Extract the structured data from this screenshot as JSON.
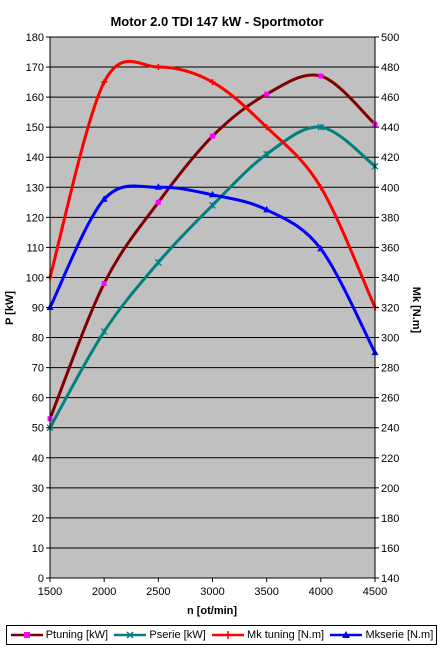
{
  "chart_data": {
    "type": "line",
    "title": "Motor 2.0 TDI 147 kW - Sportmotor",
    "xlabel": "n [ot/min]",
    "ylabel": "P [kW]",
    "y2label": "Mk [N.m]",
    "xlim": [
      1500,
      4500
    ],
    "ylim": [
      0,
      180
    ],
    "y2lim": [
      140,
      500
    ],
    "xticks": [
      1500,
      2000,
      2500,
      3000,
      3500,
      4000,
      4500
    ],
    "yticks": [
      0,
      10,
      20,
      30,
      40,
      50,
      60,
      70,
      80,
      90,
      100,
      110,
      120,
      130,
      140,
      150,
      160,
      170,
      180
    ],
    "y2ticks": [
      140,
      160,
      180,
      200,
      220,
      240,
      260,
      280,
      300,
      320,
      340,
      360,
      380,
      400,
      420,
      440,
      460,
      480,
      500
    ],
    "grid": true,
    "legend_position": "bottom",
    "colors": {
      "plot_bg": "#c0c0c0"
    },
    "series": [
      {
        "name": "Ptuning [kW]",
        "axis": "left",
        "color": "#800000",
        "marker": "square",
        "marker_color": "#ff00ff",
        "x": [
          1500,
          2000,
          2500,
          3000,
          3500,
          4000,
          4500
        ],
        "values": [
          53,
          98,
          125,
          147,
          161,
          167,
          151
        ]
      },
      {
        "name": "Pserie [kW]",
        "axis": "left",
        "color": "#008080",
        "marker": "star",
        "marker_color": "#008080",
        "x": [
          1500,
          2000,
          2500,
          3000,
          3500,
          4000,
          4500
        ],
        "values": [
          50,
          82,
          105,
          124,
          141,
          150,
          137
        ]
      },
      {
        "name": "Mk tuning [N.m]",
        "axis": "right",
        "color": "#ff0000",
        "marker": "plus",
        "marker_color": "#ff0000",
        "x": [
          1500,
          2000,
          2500,
          3000,
          3500,
          4000,
          4500
        ],
        "values": [
          340,
          470,
          480,
          470,
          440,
          400,
          320
        ]
      },
      {
        "name": "Mkserie [N.m]",
        "axis": "right",
        "color": "#0000ff",
        "marker": "triangle",
        "marker_color": "#0000ff",
        "x": [
          1500,
          2000,
          2500,
          3000,
          3500,
          4000,
          4500
        ],
        "values": [
          320,
          392,
          400,
          395,
          385,
          359,
          290
        ]
      }
    ]
  }
}
